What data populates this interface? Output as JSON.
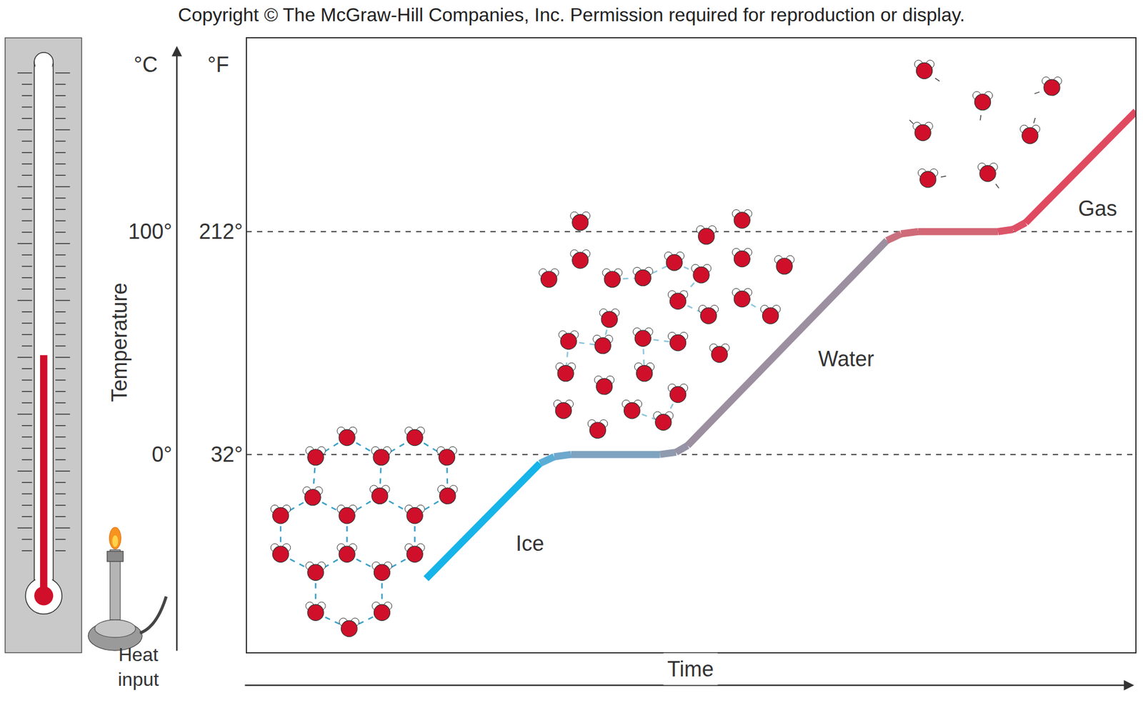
{
  "chart_data": {
    "type": "line",
    "title": "Copyright © The McGraw-Hill Companies, Inc. Permission required for reproduction or display.",
    "x_label": "Time",
    "y_label": "Temperature",
    "y_unit": "°C",
    "y2_unit": "°F",
    "heat_label": "Heat input",
    "x": [
      20.2,
      33.0,
      34.6,
      36.5,
      46.5,
      48.3,
      49.6,
      72.0,
      73.6,
      75.5,
      84.5,
      86.2,
      87.6,
      100
    ],
    "values": [
      -55.7,
      -4,
      -1,
      0,
      0,
      1,
      4,
      96,
      99,
      100,
      100,
      101,
      104,
      154
    ],
    "colors": [
      "#16b4e8",
      "#5aaed6",
      "#6ea8cc",
      "#7ea3c0",
      "#8f9aae",
      "#9793a6",
      "#9c8fa0",
      "#c9707e",
      "#cf6a78",
      "#d26675",
      "#dc5468",
      "#de5065",
      "#e04a60",
      "#e8304a"
    ],
    "xlim": [
      0,
      100
    ],
    "ylim": [
      -89,
      187
    ],
    "yticks": [
      {
        "value": 0,
        "label": "0°"
      },
      {
        "value": 100,
        "label": "100°"
      }
    ],
    "y2lim": [
      -128.2,
      368.6
    ],
    "y2ticks": [
      {
        "value": 32,
        "label": "32°"
      },
      {
        "value": 212,
        "label": "212°"
      }
    ],
    "grid": true,
    "tick_labels": "y",
    "line_style": "solid",
    "annotations": [
      {
        "text": "Ice",
        "x": 31.9,
        "y": -40
      },
      {
        "text": "Water",
        "x": 67.4,
        "y": 43
      },
      {
        "text": "Gas",
        "x": 95.7,
        "y": 110.5
      }
    ]
  }
}
